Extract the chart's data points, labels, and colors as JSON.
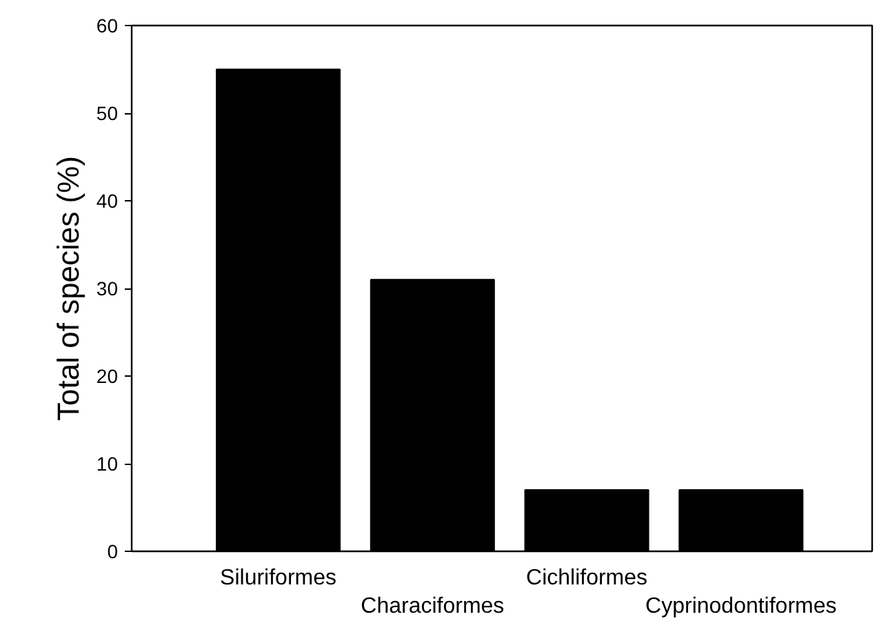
{
  "chart_data": {
    "type": "bar",
    "ylabel": "Total of species (%)",
    "categories": [
      "Siluriformes",
      "Characiformes",
      "Cichliformes",
      "Cyprinodontiformes"
    ],
    "values": [
      55,
      31,
      7,
      7
    ],
    "color": "#000000",
    "ylim": [
      0,
      60
    ],
    "yticks": [
      0,
      10,
      20,
      30,
      40,
      50,
      60
    ],
    "grid": false
  }
}
